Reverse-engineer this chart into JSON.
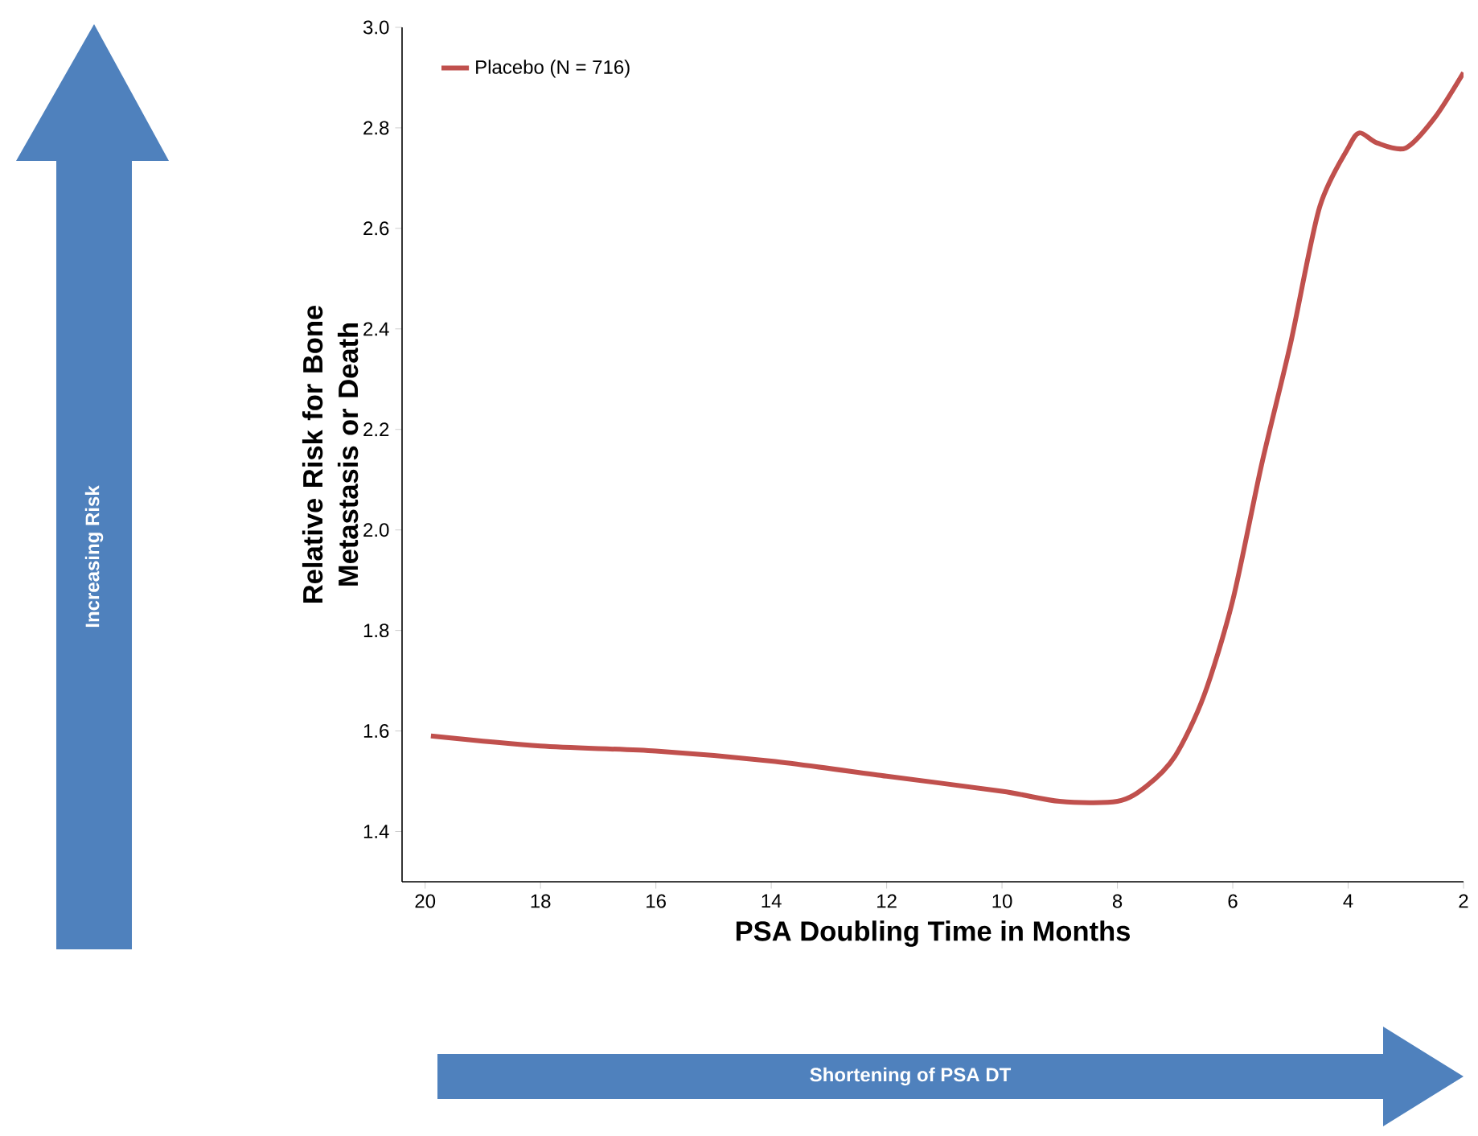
{
  "chart_data": {
    "type": "line",
    "xlabel": "PSA Doubling Time in Months",
    "ylabel": "Relative Risk for Bone Metastasis or Death",
    "annotations": [
      "Increasing Risk",
      "Shortening of PSA DT"
    ],
    "xlim": [
      20.4,
      2
    ],
    "ylim": [
      1.3,
      3.0
    ],
    "xticks": [
      20,
      18,
      16,
      14,
      12,
      10,
      8,
      6,
      4,
      2
    ],
    "yticks": [
      1.4,
      1.6,
      1.8,
      {
        "value": 2.0,
        "label": "2.0"
      },
      2.2,
      2.4,
      2.6,
      2.8,
      {
        "value": 3.0,
        "label": "3.0"
      }
    ],
    "legend": "top left",
    "marker": "none",
    "line_style": "solid",
    "series": [
      {
        "name": "Placebo (N = 716)",
        "color": "#c0504d",
        "x": [
          19.9,
          18,
          16,
          14,
          12,
          10,
          9,
          8,
          7.5,
          7,
          6.5,
          6,
          5.5,
          5,
          4.5,
          4,
          3.8,
          3.5,
          3,
          2.5,
          2
        ],
        "values": [
          1.59,
          1.57,
          1.56,
          1.54,
          1.51,
          1.48,
          1.46,
          1.46,
          1.49,
          1.55,
          1.67,
          1.86,
          2.13,
          2.37,
          2.64,
          2.76,
          2.79,
          2.77,
          2.76,
          2.82,
          2.91
        ]
      }
    ]
  }
}
